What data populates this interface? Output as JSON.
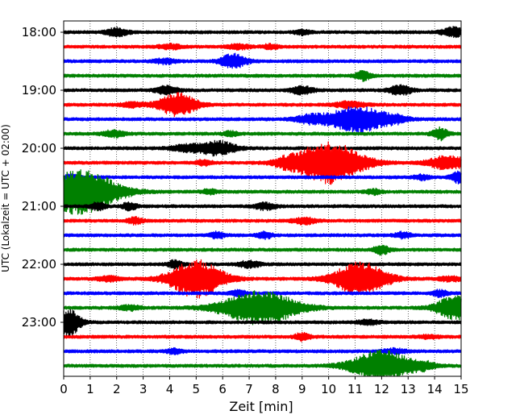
{
  "chart_data": {
    "type": "line",
    "xlabel": "Zeit  [min]",
    "ylabel": "UTC (Lokalzeit = UTC + 02:00)",
    "xlim": [
      0,
      15
    ],
    "x_ticks": [
      0,
      1,
      2,
      3,
      4,
      5,
      6,
      7,
      8,
      9,
      10,
      11,
      12,
      13,
      14,
      15
    ],
    "y_tick_labels": [
      "18:00",
      "19:00",
      "20:00",
      "21:00",
      "22:00",
      "23:00"
    ],
    "row_interval_minutes": 15,
    "grid": "vertical dotted lines at each minute",
    "trace_colors": [
      "#000000",
      "#ff0000",
      "#0000ff",
      "#008000"
    ],
    "traces": [
      {
        "start": "18:00",
        "events": [
          [
            2.0,
            0.5,
            0.3
          ],
          [
            14.7,
            0.6,
            0.3
          ],
          [
            9.0,
            0.3,
            0.2
          ]
        ]
      },
      {
        "start": "18:15",
        "events": [
          [
            4.0,
            0.3,
            0.3
          ],
          [
            6.6,
            0.3,
            0.3
          ],
          [
            7.8,
            0.3,
            0.2
          ]
        ]
      },
      {
        "start": "18:30",
        "events": [
          [
            6.4,
            0.9,
            0.35
          ],
          [
            3.8,
            0.3,
            0.3
          ]
        ]
      },
      {
        "start": "18:45",
        "events": [
          [
            11.3,
            0.6,
            0.2
          ]
        ]
      },
      {
        "start": "19:00",
        "events": [
          [
            3.9,
            0.5,
            0.3
          ],
          [
            9.0,
            0.5,
            0.3
          ],
          [
            12.7,
            0.6,
            0.3
          ]
        ]
      },
      {
        "start": "19:15",
        "events": [
          [
            4.3,
            1.5,
            0.5
          ],
          [
            2.6,
            0.3,
            0.3
          ],
          [
            10.8,
            0.4,
            0.4
          ]
        ]
      },
      {
        "start": "19:30",
        "events": [
          [
            11.1,
            1.7,
            0.8
          ],
          [
            9.3,
            0.5,
            0.4
          ],
          [
            12.6,
            0.3,
            0.3
          ]
        ]
      },
      {
        "start": "19:45",
        "events": [
          [
            1.9,
            0.4,
            0.3
          ],
          [
            14.2,
            0.8,
            0.2
          ],
          [
            6.3,
            0.3,
            0.2
          ]
        ]
      },
      {
        "start": "20:00",
        "events": [
          [
            5.8,
            0.9,
            0.5
          ],
          [
            4.6,
            0.4,
            0.4
          ]
        ]
      },
      {
        "start": "20:15",
        "events": [
          [
            10.0,
            2.8,
            0.9
          ],
          [
            14.5,
            0.9,
            0.5
          ],
          [
            5.3,
            0.4,
            0.2
          ],
          [
            8.4,
            0.4,
            0.3
          ]
        ]
      },
      {
        "start": "20:30",
        "events": [
          [
            14.9,
            0.7,
            0.2
          ],
          [
            13.5,
            0.3,
            0.2
          ],
          [
            0.3,
            0.3,
            0.2
          ]
        ]
      },
      {
        "start": "20:45",
        "events": [
          [
            0.6,
            3.0,
            1.0
          ],
          [
            5.5,
            0.3,
            0.2
          ],
          [
            11.7,
            0.3,
            0.2
          ]
        ]
      },
      {
        "start": "21:00",
        "events": [
          [
            1.3,
            0.5,
            0.2
          ],
          [
            2.5,
            0.5,
            0.2
          ],
          [
            7.6,
            0.4,
            0.3
          ]
        ]
      },
      {
        "start": "21:15",
        "events": [
          [
            2.7,
            0.4,
            0.2
          ],
          [
            9.1,
            0.4,
            0.3
          ]
        ]
      },
      {
        "start": "21:30",
        "events": [
          [
            5.8,
            0.4,
            0.2
          ],
          [
            7.6,
            0.4,
            0.2
          ],
          [
            12.8,
            0.4,
            0.2
          ]
        ]
      },
      {
        "start": "21:45",
        "events": [
          [
            12.0,
            0.6,
            0.2
          ]
        ]
      },
      {
        "start": "22:00",
        "events": [
          [
            4.2,
            0.5,
            0.2
          ],
          [
            7.0,
            0.4,
            0.3
          ]
        ]
      },
      {
        "start": "22:15",
        "events": [
          [
            5.0,
            2.5,
            0.7
          ],
          [
            11.2,
            2.2,
            0.7
          ],
          [
            1.7,
            0.3,
            0.3
          ],
          [
            14.6,
            0.3,
            0.3
          ]
        ]
      },
      {
        "start": "22:30",
        "events": [
          [
            6.6,
            0.4,
            0.2
          ],
          [
            14.2,
            0.4,
            0.2
          ]
        ]
      },
      {
        "start": "22:45",
        "events": [
          [
            7.4,
            2.2,
            1.0
          ],
          [
            14.8,
            1.6,
            0.5
          ],
          [
            2.5,
            0.3,
            0.3
          ]
        ]
      },
      {
        "start": "23:00",
        "events": [
          [
            0.2,
            1.8,
            0.3
          ],
          [
            11.5,
            0.3,
            0.3
          ]
        ]
      },
      {
        "start": "23:15",
        "events": [
          [
            9.0,
            0.5,
            0.2
          ],
          [
            13.8,
            0.2,
            0.3
          ]
        ]
      },
      {
        "start": "23:30",
        "events": [
          [
            4.2,
            0.3,
            0.2
          ],
          [
            12.5,
            0.3,
            0.3
          ]
        ]
      },
      {
        "start": "23:45",
        "events": [
          [
            12.0,
            2.0,
            0.8
          ],
          [
            13.6,
            0.4,
            0.3
          ]
        ]
      }
    ]
  }
}
